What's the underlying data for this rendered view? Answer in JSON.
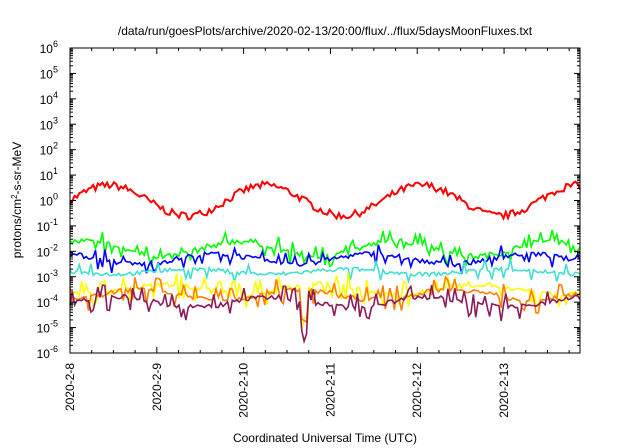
{
  "chart_data": {
    "type": "line",
    "title": "/data/run/goesPlots/archive/2020-02-13/20:00/flux/../flux/5daysMoonFluxes.txt",
    "xlabel": "Coordinated Universal Time (UTC)",
    "ylabel": {
      "base": "protons/cm",
      "sup": "2",
      "rest": "-s-sr-MeV"
    },
    "y_scale": "log",
    "ylim_exp": [
      -6,
      6
    ],
    "y_tick_exponents": [
      -6,
      -5,
      -4,
      -3,
      -2,
      -1,
      0,
      1,
      2,
      3,
      4,
      5,
      6
    ],
    "y_tick_base": "10",
    "x_range_days": [
      "2020-2-8",
      "2020-2-13 21:00"
    ],
    "x_tick_labels": [
      "2020-2-8",
      "2020-2-9",
      "2020-2-10",
      "2020-2-11",
      "2020-2-12",
      "2020-2-13"
    ],
    "grid": false,
    "legend": "none",
    "series": [
      {
        "color": "#ff0000",
        "log_center": 0.0,
        "amplitude": 0.6,
        "noise": 0.15,
        "spike_prob": 0.0
      },
      {
        "color": "#00ff00",
        "log_center": -1.9,
        "amplitude": 0.3,
        "noise": 0.12,
        "spike_prob": 0.25
      },
      {
        "color": "#0000ff",
        "log_center": -2.3,
        "amplitude": 0.2,
        "noise": 0.1,
        "spike_prob": 0.15
      },
      {
        "color": "#40e0d0",
        "log_center": -2.8,
        "amplitude": 0.1,
        "noise": 0.08,
        "spike_prob": 0.1
      },
      {
        "color": "#ffff00",
        "log_center": -3.5,
        "amplitude": 0.2,
        "noise": 0.1,
        "spike_prob": 0.2
      },
      {
        "color": "#ff7f00",
        "log_center": -3.7,
        "amplitude": 0.2,
        "noise": 0.1,
        "spike_prob": 0.2
      },
      {
        "color": "#8b1a5a",
        "log_center": -4.0,
        "amplitude": 0.2,
        "noise": 0.1,
        "spike_prob": 0.2
      }
    ]
  }
}
